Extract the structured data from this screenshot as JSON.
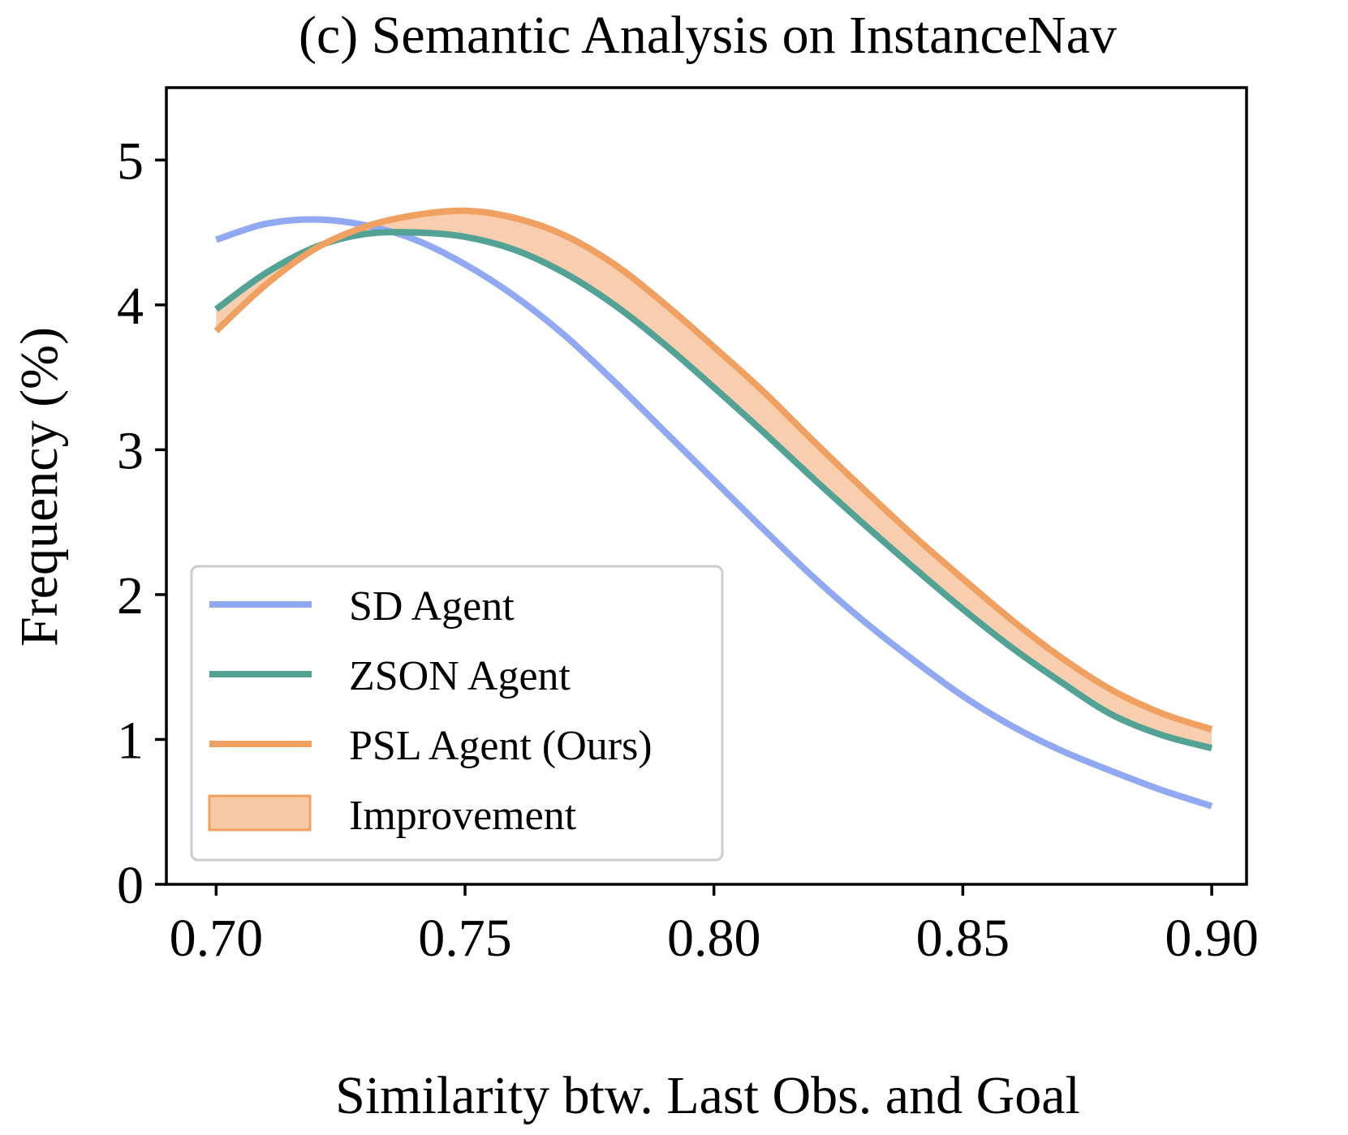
{
  "chart_data": {
    "type": "line",
    "title": "(c) Semantic Analysis on InstanceNav",
    "xlabel": "Similarity btw. Last Obs. and Goal",
    "ylabel": "Frequency (%)",
    "xlim": [
      0.69,
      0.907
    ],
    "ylim": [
      0,
      5.5
    ],
    "xticks": [
      0.7,
      0.75,
      0.8,
      0.85,
      0.9
    ],
    "xtick_labels": [
      "0.70",
      "0.75",
      "0.80",
      "0.85",
      "0.90"
    ],
    "yticks": [
      0,
      1,
      2,
      3,
      4,
      5
    ],
    "ytick_labels": [
      "0",
      "1",
      "2",
      "3",
      "4",
      "5"
    ],
    "grid": false,
    "legend_position": "bottom-left",
    "x": [
      0.7,
      0.71,
      0.72,
      0.73,
      0.74,
      0.75,
      0.76,
      0.77,
      0.78,
      0.79,
      0.8,
      0.81,
      0.82,
      0.83,
      0.84,
      0.85,
      0.86,
      0.87,
      0.88,
      0.89,
      0.9
    ],
    "series": [
      {
        "name": "SD Agent",
        "color": "#91A8F2",
        "values": [
          4.45,
          4.56,
          4.59,
          4.55,
          4.45,
          4.28,
          4.06,
          3.79,
          3.47,
          3.13,
          2.79,
          2.45,
          2.12,
          1.82,
          1.55,
          1.3,
          1.09,
          0.92,
          0.78,
          0.65,
          0.54
        ]
      },
      {
        "name": "ZSON Agent",
        "color": "#52A396",
        "values": [
          3.97,
          4.22,
          4.4,
          4.49,
          4.5,
          4.47,
          4.38,
          4.22,
          4.0,
          3.73,
          3.43,
          3.12,
          2.8,
          2.49,
          2.19,
          1.9,
          1.63,
          1.39,
          1.17,
          1.03,
          0.94
        ]
      },
      {
        "name": "PSL Agent (Ours)",
        "color": "#F0A060",
        "values": [
          3.82,
          4.14,
          4.39,
          4.54,
          4.62,
          4.65,
          4.6,
          4.48,
          4.28,
          4.01,
          3.71,
          3.4,
          3.06,
          2.73,
          2.41,
          2.11,
          1.82,
          1.56,
          1.34,
          1.18,
          1.07
        ]
      }
    ],
    "fill": {
      "name": "Improvement",
      "between": [
        "ZSON Agent",
        "PSL Agent (Ours)"
      ],
      "color": "#F7C9A5",
      "edge_color": "#F0A060"
    }
  }
}
